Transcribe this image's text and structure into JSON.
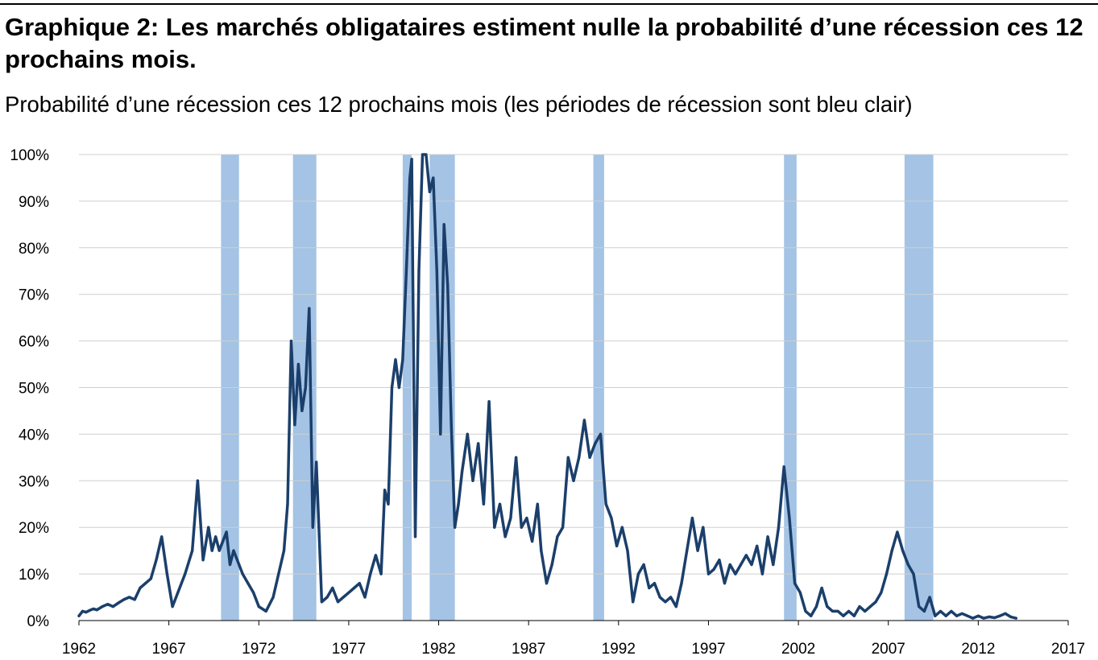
{
  "title": "Graphique 2: Les marchés obligataires estiment nulle la probabilité d’une récession ces 12 prochains mois.",
  "subtitle": "Probabilité d’une récession ces 12 prochains mois (les périodes de récession sont bleu clair)",
  "colors": {
    "line": "#1b3f6b",
    "recession": "#a4c3e5",
    "grid": "#cfcfcf"
  },
  "chart_data": {
    "type": "line",
    "xlim": [
      1962,
      2017
    ],
    "ylim": [
      0,
      100
    ],
    "x_ticks": [
      "1962",
      "1967",
      "1972",
      "1977",
      "1982",
      "1987",
      "1992",
      "1997",
      "2002",
      "2007",
      "2012",
      "2017"
    ],
    "y_ticks": [
      "0%",
      "10%",
      "20%",
      "30%",
      "40%",
      "50%",
      "60%",
      "70%",
      "80%",
      "90%",
      "100%"
    ],
    "grid": "horizontal",
    "recessions": [
      [
        1969.9,
        1970.9
      ],
      [
        1973.9,
        1975.2
      ],
      [
        1980.0,
        1980.5
      ],
      [
        1981.5,
        1982.9
      ],
      [
        1990.6,
        1991.2
      ],
      [
        2001.2,
        2001.9
      ],
      [
        2007.9,
        2009.5
      ]
    ],
    "series": [
      {
        "x": [
          1962.0,
          1962.2,
          1962.4,
          1962.6,
          1962.8,
          1963.0,
          1963.3,
          1963.6,
          1963.9,
          1964.2,
          1964.5,
          1964.8,
          1965.1,
          1965.4,
          1965.7,
          1966.0,
          1966.3,
          1966.6,
          1966.9,
          1967.2,
          1967.5,
          1967.9,
          1968.3,
          1968.6,
          1968.9,
          1969.2,
          1969.4,
          1969.6,
          1969.8,
          1970.0,
          1970.2,
          1970.4,
          1970.6,
          1970.9,
          1971.1,
          1971.4,
          1971.7,
          1972.0,
          1972.4,
          1972.8,
          1973.1,
          1973.4,
          1973.6,
          1973.8,
          1974.0,
          1974.2,
          1974.4,
          1974.6,
          1974.8,
          1975.0,
          1975.2,
          1975.5,
          1975.8,
          1976.1,
          1976.4,
          1976.7,
          1977.0,
          1977.3,
          1977.6,
          1977.9,
          1978.2,
          1978.5,
          1978.8,
          1979.0,
          1979.2,
          1979.4,
          1979.6,
          1979.8,
          1980.0,
          1980.2,
          1980.4,
          1980.5,
          1980.7,
          1980.9,
          1981.1,
          1981.3,
          1981.5,
          1981.7,
          1981.9,
          1982.1,
          1982.3,
          1982.5,
          1982.7,
          1982.9,
          1983.1,
          1983.3,
          1983.6,
          1983.9,
          1984.2,
          1984.5,
          1984.8,
          1985.1,
          1985.4,
          1985.7,
          1986.0,
          1986.3,
          1986.6,
          1986.9,
          1987.2,
          1987.5,
          1987.7,
          1988.0,
          1988.3,
          1988.6,
          1988.9,
          1989.2,
          1989.5,
          1989.8,
          1990.1,
          1990.4,
          1990.7,
          1991.0,
          1991.3,
          1991.6,
          1991.9,
          1992.2,
          1992.5,
          1992.8,
          1993.1,
          1993.4,
          1993.7,
          1994.0,
          1994.3,
          1994.6,
          1994.9,
          1995.2,
          1995.5,
          1995.8,
          1996.1,
          1996.4,
          1996.7,
          1997.0,
          1997.3,
          1997.6,
          1997.9,
          1998.2,
          1998.5,
          1998.8,
          1999.1,
          1999.4,
          1999.7,
          2000.0,
          2000.3,
          2000.6,
          2000.9,
          2001.2,
          2001.5,
          2001.8,
          2002.1,
          2002.4,
          2002.7,
          2003.0,
          2003.3,
          2003.6,
          2003.9,
          2004.2,
          2004.5,
          2004.8,
          2005.1,
          2005.4,
          2005.7,
          2006.0,
          2006.3,
          2006.6,
          2006.9,
          2007.2,
          2007.5,
          2007.8,
          2008.1,
          2008.4,
          2008.7,
          2009.0,
          2009.3,
          2009.6,
          2009.9,
          2010.2,
          2010.5,
          2010.8,
          2011.1,
          2011.4,
          2011.7,
          2012.0,
          2012.3,
          2012.6,
          2012.9,
          2013.2,
          2013.5,
          2013.8,
          2014.1
        ],
        "values": [
          1,
          2,
          1.8,
          2.2,
          2.5,
          2.3,
          3,
          3.5,
          3,
          3.8,
          4.5,
          5,
          4.5,
          7,
          8,
          9,
          13,
          18,
          10,
          3,
          6,
          10,
          15,
          30,
          13,
          20,
          15,
          18,
          15,
          17,
          19,
          12,
          15,
          12,
          10,
          8,
          6,
          3,
          2,
          5,
          10,
          15,
          25,
          60,
          42,
          55,
          45,
          50,
          67,
          20,
          34,
          4,
          5,
          7,
          4,
          5,
          6,
          7,
          8,
          5,
          10,
          14,
          10,
          28,
          25,
          50,
          56,
          50,
          56,
          75,
          95,
          99,
          18,
          75,
          100,
          100,
          92,
          95,
          75,
          40,
          85,
          72,
          42,
          20,
          25,
          32,
          40,
          30,
          38,
          25,
          47,
          20,
          25,
          18,
          22,
          35,
          20,
          22,
          17,
          25,
          15,
          8,
          12,
          18,
          20,
          35,
          30,
          35,
          43,
          35,
          38,
          40,
          25,
          22,
          16,
          20,
          15,
          4,
          10,
          12,
          7,
          8,
          5,
          4,
          5,
          3,
          8,
          15,
          22,
          15,
          20,
          10,
          11,
          13,
          8,
          12,
          10,
          12,
          14,
          12,
          16,
          10,
          18,
          12,
          20,
          33,
          22,
          8,
          6,
          2,
          1,
          3,
          7,
          3,
          2,
          2,
          1,
          2,
          1,
          3,
          2,
          3,
          4,
          6,
          10,
          15,
          19,
          15,
          12,
          10,
          3,
          2,
          5,
          1,
          2,
          1,
          2,
          1,
          1.5,
          1,
          0.5,
          1,
          0.5,
          0.8,
          0.6,
          1,
          1.5,
          0.8,
          0.5
        ]
      }
    ]
  }
}
